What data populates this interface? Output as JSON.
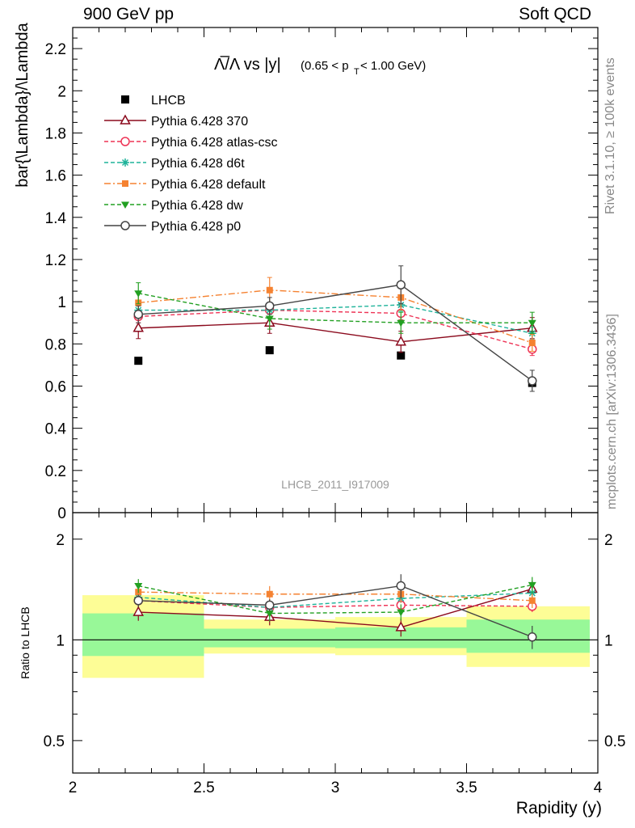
{
  "header": {
    "left": "900 GeV pp",
    "right": "Soft QCD"
  },
  "side": {
    "rivet": "Rivet 3.1.10, ≥ 100k events",
    "mcplots": "mcplots.cern.ch [arXiv:1306.3436]"
  },
  "chart_data": {
    "type": "line",
    "title_main": "Λ̅/Λ vs |y|",
    "title_sub": "(0.65 < p",
    "title_sub_index": "T",
    "title_sub_end": " < 1.00 GeV)",
    "ylabel": "bar{\\Lambda}/\\Lambda",
    "ratio_ylabel": "Ratio to LHCB",
    "xlabel": "Rapidity (y)",
    "watermark": "LHCB_2011_I917009",
    "xlim": [
      2,
      4
    ],
    "ylim": [
      0,
      2.3
    ],
    "ratio_ylim": [
      0.4,
      2.4
    ],
    "ratio_scale": "log",
    "x_ticks": [
      "2",
      "2.5",
      "3",
      "3.5",
      "4"
    ],
    "y_ticks": [
      "0",
      "0.2",
      "0.4",
      "0.6",
      "0.8",
      "1",
      "1.2",
      "1.4",
      "1.6",
      "1.8",
      "2",
      "2.2"
    ],
    "ratio_ticks": [
      "0.5",
      "1",
      "2"
    ],
    "bins": [
      [
        2.0,
        2.5
      ],
      [
        2.5,
        3.0
      ],
      [
        3.0,
        3.5
      ],
      [
        3.5,
        4.0
      ]
    ],
    "x": [
      2.25,
      2.75,
      3.25,
      3.75
    ],
    "data": {
      "name": "LHCB",
      "values": [
        0.72,
        0.77,
        0.745,
        0.615
      ],
      "band_inner": [
        [
          0.895,
          1.2
        ],
        [
          0.95,
          1.08
        ],
        [
          0.945,
          1.09
        ],
        [
          0.915,
          1.15
        ]
      ],
      "band_outer": [
        [
          0.77,
          1.36
        ],
        [
          0.91,
          1.15
        ],
        [
          0.9,
          1.17
        ],
        [
          0.83,
          1.26
        ]
      ]
    },
    "series": [
      {
        "name": "Pythia 6.428 370",
        "color": "#8b0a1d",
        "marker": "triangle-open",
        "dash": "",
        "values": [
          0.875,
          0.9,
          0.81,
          0.875
        ],
        "err": [
          0.05,
          0.05,
          0.05,
          0.05
        ]
      },
      {
        "name": "Pythia 6.428 atlas-csc",
        "color": "#ee3355",
        "marker": "circle-open",
        "dash": "5,3",
        "values": [
          0.93,
          0.96,
          0.945,
          0.775
        ],
        "err": [
          0.03,
          0.03,
          0.03,
          0.03
        ]
      },
      {
        "name": "Pythia 6.428 d6t",
        "color": "#1fb39a",
        "marker": "star",
        "dash": "5,3",
        "values": [
          0.96,
          0.96,
          0.985,
          0.85
        ],
        "err": [
          0.03,
          0.03,
          0.03,
          0.03
        ]
      },
      {
        "name": "Pythia 6.428 default",
        "color": "#f58231",
        "marker": "square",
        "dash": "8,3,2,3",
        "values": [
          0.995,
          1.055,
          1.02,
          0.805
        ],
        "err": [
          0.05,
          0.06,
          0.06,
          0.04
        ]
      },
      {
        "name": "Pythia 6.428 dw",
        "color": "#22a022",
        "marker": "triangle-down",
        "dash": "5,3",
        "values": [
          1.04,
          0.92,
          0.9,
          0.9
        ],
        "err": [
          0.05,
          0.05,
          0.05,
          0.05
        ]
      },
      {
        "name": "Pythia 6.428 p0",
        "color": "#444444",
        "marker": "circle-open",
        "dash": "",
        "values": [
          0.94,
          0.98,
          1.08,
          0.625
        ],
        "err": [
          0.04,
          0.04,
          0.09,
          0.05
        ]
      }
    ],
    "ratio_values": {
      "Pythia 6.428 370": [
        1.21,
        1.17,
        1.09,
        1.42
      ],
      "Pythia 6.428 atlas-csc": [
        1.31,
        1.25,
        1.27,
        1.26
      ],
      "Pythia 6.428 d6t": [
        1.34,
        1.25,
        1.33,
        1.38
      ],
      "Pythia 6.428 default": [
        1.39,
        1.37,
        1.37,
        1.31
      ],
      "Pythia 6.428 dw": [
        1.45,
        1.2,
        1.21,
        1.46
      ],
      "Pythia 6.428 p0": [
        1.31,
        1.27,
        1.45,
        1.02
      ]
    }
  }
}
